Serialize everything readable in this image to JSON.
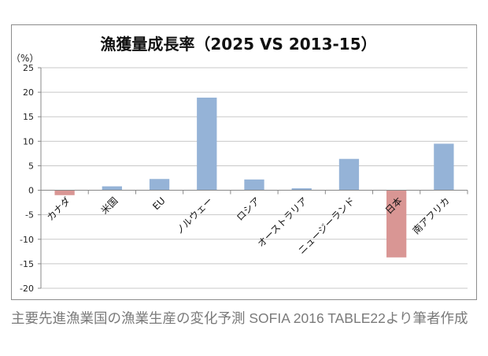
{
  "chart_data": {
    "type": "bar",
    "title": "漁獲量成長率（2025 VS 2013-15）",
    "ylabel": "（%）",
    "xlabel": "",
    "categories": [
      "カナダ",
      "米国",
      "EU",
      "ノルウェー",
      "ロシア",
      "オーストラリア",
      "ニュージーランド",
      "日本",
      "南アフリカ"
    ],
    "values": [
      -1.0,
      0.8,
      2.3,
      18.9,
      2.2,
      0.4,
      6.4,
      -13.7,
      9.5
    ],
    "ylim": [
      -20,
      25
    ],
    "yticks": [
      25,
      20,
      15,
      10,
      5,
      0,
      -5,
      -10,
      -15,
      -20
    ],
    "grid": true,
    "legend": "none",
    "colors": {
      "positive": "#95b3d7",
      "negative": "#d99694"
    }
  },
  "caption": "主要先進漁業国の漁業生産の変化予測 SOFIA 2016 TABLE22より筆者作成"
}
